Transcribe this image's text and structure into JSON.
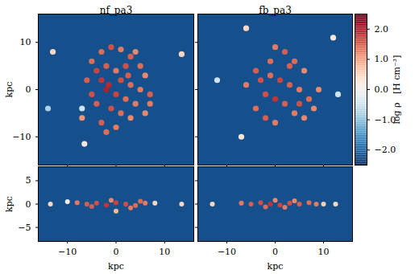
{
  "chart_data": {
    "type": "heatmap",
    "colorbar": {
      "range": [
        -2.5,
        2.5
      ],
      "ticks": [
        -2,
        -1,
        0,
        1,
        2
      ],
      "label": "log ρ   [H cm⁻³]"
    },
    "panels": [
      {
        "type": "scatter",
        "title": "nf_pa3",
        "y_label": "kpc",
        "tick_labels": "y",
        "xlim": [
          -16,
          16
        ],
        "ylim": [
          -16,
          16
        ],
        "xticks": [
          -10,
          0,
          10
        ],
        "yticks": [
          -10,
          0,
          10
        ],
        "background": -2.2,
        "x": [
          -13,
          13.5,
          -6.5,
          -7,
          -14,
          -3,
          -1,
          1,
          3,
          4,
          -5,
          -4,
          -2,
          0,
          2,
          5,
          6,
          -6,
          -3,
          1,
          3,
          5,
          7,
          -5,
          -2,
          0,
          2,
          4,
          -4,
          -1,
          1,
          3,
          -3,
          0,
          -2,
          6,
          7,
          -7,
          -1.5,
          2.5
        ],
        "y": [
          8,
          7.5,
          -11.5,
          -4,
          -4,
          8,
          9,
          8.5,
          7,
          8,
          6,
          4,
          5,
          4,
          5,
          5,
          3,
          2,
          2,
          2,
          1,
          0,
          -1,
          -1,
          0,
          -1,
          -2,
          -3,
          -3,
          -4,
          -5,
          -6,
          -7,
          -8,
          -9,
          -5,
          -3,
          -6,
          1,
          3
        ],
        "values": [
          0.5,
          0.5,
          0.3,
          -0.5,
          -0.8,
          1.4,
          1.6,
          1.3,
          1.5,
          1.2,
          1.4,
          1.7,
          1.5,
          1.3,
          1.6,
          1.4,
          1.2,
          1.5,
          1.8,
          1.6,
          1.4,
          1.3,
          1.5,
          1.6,
          2.0,
          1.7,
          1.4,
          1.3,
          1.5,
          1.6,
          1.4,
          1.2,
          1.5,
          1.3,
          1.4,
          1.2,
          1.3,
          1.1,
          1.9,
          1.5
        ]
      },
      {
        "type": "scatter",
        "title": "fb_pa3",
        "tick_labels": false,
        "xlim": [
          -16,
          16
        ],
        "ylim": [
          -16,
          16
        ],
        "xticks": [
          -10,
          0,
          10
        ],
        "yticks": [
          -10,
          0,
          10
        ],
        "background": -2.2,
        "x": [
          -6,
          12,
          -7,
          -12,
          13,
          0,
          2,
          4,
          6,
          -4,
          -3,
          -1,
          1,
          3,
          5,
          7,
          8,
          -2,
          0,
          2,
          4,
          6,
          -4,
          -2,
          0,
          9,
          -6,
          3,
          -1,
          5
        ],
        "y": [
          13,
          11,
          -10,
          2,
          -1,
          9,
          8,
          6,
          4,
          4,
          2,
          3,
          2,
          1,
          0,
          -2,
          -4,
          -1,
          -2,
          -3,
          -5,
          -6,
          -4,
          -6,
          -7,
          0,
          1,
          5,
          6,
          -3
        ],
        "values": [
          0.5,
          0.3,
          0.3,
          -0.5,
          -0.5,
          1.3,
          1.5,
          1.4,
          1.2,
          1.5,
          1.6,
          1.4,
          1.7,
          1.5,
          1.3,
          1.4,
          1.2,
          1.6,
          1.8,
          1.5,
          1.3,
          1.2,
          1.4,
          1.5,
          1.3,
          1.2,
          1.3,
          1.5,
          1.4,
          1.6
        ]
      },
      {
        "type": "scatter",
        "x_label": "kpc",
        "y_label": "kpc",
        "xlim": [
          -16,
          16
        ],
        "ylim": [
          -8,
          8
        ],
        "xticks": [
          -10,
          0,
          10
        ],
        "yticks": [
          -5,
          0,
          5
        ],
        "background": -2.2,
        "x": [
          -13.5,
          13.5,
          8,
          -10,
          -8,
          -6,
          -4,
          -2,
          0,
          2,
          4,
          6,
          -1,
          3,
          0,
          -5,
          5
        ],
        "y": [
          0,
          0,
          0.2,
          0.5,
          0.3,
          0,
          0.2,
          -0.2,
          0.3,
          0,
          -0.3,
          0.2,
          0.8,
          -0.8,
          -1.5,
          -0.5,
          0.6
        ],
        "values": [
          0.5,
          0.5,
          0.5,
          0,
          1.3,
          1.5,
          1.6,
          1.8,
          1.7,
          1.6,
          1.4,
          1.3,
          1.2,
          1.3,
          0.8,
          1.5,
          1.4
        ]
      },
      {
        "type": "scatter",
        "x_label": "kpc",
        "tick_labels": "x",
        "xlim": [
          -16,
          16
        ],
        "ylim": [
          -8,
          8
        ],
        "xticks": [
          -10,
          0,
          10
        ],
        "yticks": [
          -5,
          0,
          5
        ],
        "background": -2.2,
        "x": [
          -13,
          12.5,
          10,
          -7,
          -5,
          -3,
          -1,
          1,
          3,
          5,
          7,
          8.5,
          0,
          2,
          -2,
          4
        ],
        "y": [
          0,
          0,
          0,
          0.2,
          0,
          0.3,
          0,
          -0.2,
          0.2,
          0,
          0.3,
          0,
          0.8,
          -0.7,
          -0.6,
          0.7
        ],
        "values": [
          0.5,
          0.5,
          0.6,
          1.3,
          1.5,
          1.6,
          1.8,
          1.7,
          1.6,
          1.5,
          1.4,
          1.3,
          1.2,
          1.3,
          1.4,
          1.2
        ]
      }
    ]
  }
}
